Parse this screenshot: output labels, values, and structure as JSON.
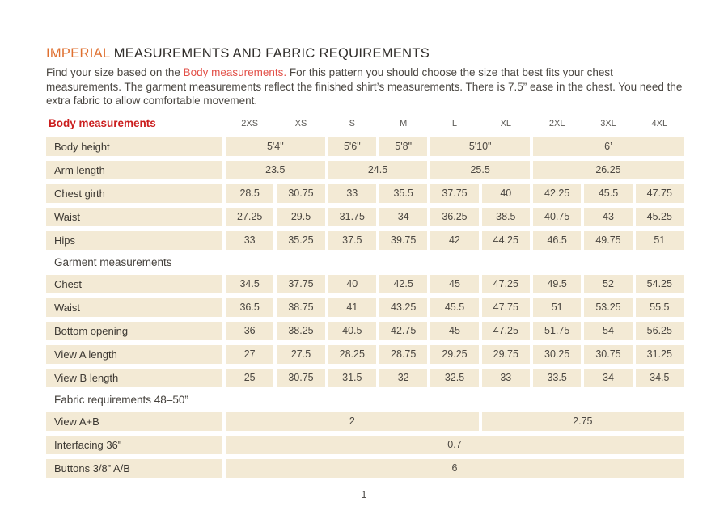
{
  "page": {
    "title_accent": "IMPERIAL",
    "title_rest": " MEASUREMENTS AND FABRIC REQUIREMENTS",
    "intro_pre": "Find your size based on the ",
    "intro_link": "Body measurements.",
    "intro_post": " For this pattern you should choose the size that best fits your chest measurements. The garment measurements reflect the finished shirt’s measurements. There is 7.5” ease in the chest. You need the extra fabric to allow comfortable movement.",
    "page_number": "1"
  },
  "colors": {
    "accent_orange": "#df7030",
    "header_red": "#cb1e1e",
    "inline_link_red": "#e25048",
    "cell_beige": "#f3ead5",
    "text_dark": "#3c3832"
  },
  "table": {
    "header_label": "Body measurements",
    "sizes": [
      "2XS",
      "XS",
      "S",
      "M",
      "L",
      "XL",
      "2XL",
      "3XL",
      "4XL"
    ],
    "sections": [
      {
        "title": "",
        "rows": [
          {
            "label": "Body height",
            "cells": [
              {
                "v": "5'4\"",
                "s": 2
              },
              {
                "v": "5'6\"",
                "s": 1
              },
              {
                "v": "5'8\"",
                "s": 1
              },
              {
                "v": "5'10\"",
                "s": 2
              },
              {
                "v": "6’",
                "s": 3
              }
            ]
          },
          {
            "label": "Arm length",
            "cells": [
              {
                "v": "23.5",
                "s": 2
              },
              {
                "v": "24.5",
                "s": 2
              },
              {
                "v": "25.5",
                "s": 2
              },
              {
                "v": "26.25",
                "s": 3
              }
            ]
          },
          {
            "label": "Chest girth",
            "cells": [
              {
                "v": "28.5",
                "s": 1
              },
              {
                "v": "30.75",
                "s": 1
              },
              {
                "v": "33",
                "s": 1
              },
              {
                "v": "35.5",
                "s": 1
              },
              {
                "v": "37.75",
                "s": 1
              },
              {
                "v": "40",
                "s": 1
              },
              {
                "v": "42.25",
                "s": 1
              },
              {
                "v": "45.5",
                "s": 1
              },
              {
                "v": "47.75",
                "s": 1
              }
            ]
          },
          {
            "label": "Waist",
            "cells": [
              {
                "v": "27.25",
                "s": 1
              },
              {
                "v": "29.5",
                "s": 1
              },
              {
                "v": "31.75",
                "s": 1
              },
              {
                "v": "34",
                "s": 1
              },
              {
                "v": "36.25",
                "s": 1
              },
              {
                "v": "38.5",
                "s": 1
              },
              {
                "v": "40.75",
                "s": 1
              },
              {
                "v": "43",
                "s": 1
              },
              {
                "v": "45.25",
                "s": 1
              }
            ]
          },
          {
            "label": "Hips",
            "cells": [
              {
                "v": "33",
                "s": 1
              },
              {
                "v": "35.25",
                "s": 1
              },
              {
                "v": "37.5",
                "s": 1
              },
              {
                "v": "39.75",
                "s": 1
              },
              {
                "v": "42",
                "s": 1
              },
              {
                "v": "44.25",
                "s": 1
              },
              {
                "v": "46.5",
                "s": 1
              },
              {
                "v": "49.75",
                "s": 1
              },
              {
                "v": "51",
                "s": 1
              }
            ]
          }
        ]
      },
      {
        "title": "Garment measurements",
        "rows": [
          {
            "label": "Chest",
            "cells": [
              {
                "v": "34.5",
                "s": 1
              },
              {
                "v": "37.75",
                "s": 1
              },
              {
                "v": "40",
                "s": 1
              },
              {
                "v": "42.5",
                "s": 1
              },
              {
                "v": "45",
                "s": 1
              },
              {
                "v": "47.25",
                "s": 1
              },
              {
                "v": "49.5",
                "s": 1
              },
              {
                "v": "52",
                "s": 1
              },
              {
                "v": "54.25",
                "s": 1
              }
            ]
          },
          {
            "label": "Waist",
            "cells": [
              {
                "v": "36.5",
                "s": 1
              },
              {
                "v": "38.75",
                "s": 1
              },
              {
                "v": "41",
                "s": 1
              },
              {
                "v": "43.25",
                "s": 1
              },
              {
                "v": "45.5",
                "s": 1
              },
              {
                "v": "47.75",
                "s": 1
              },
              {
                "v": "51",
                "s": 1
              },
              {
                "v": "53.25",
                "s": 1
              },
              {
                "v": "55.5",
                "s": 1
              }
            ]
          },
          {
            "label": "Bottom opening",
            "cells": [
              {
                "v": "36",
                "s": 1
              },
              {
                "v": "38.25",
                "s": 1
              },
              {
                "v": "40.5",
                "s": 1
              },
              {
                "v": "42.75",
                "s": 1
              },
              {
                "v": "45",
                "s": 1
              },
              {
                "v": "47.25",
                "s": 1
              },
              {
                "v": "51.75",
                "s": 1
              },
              {
                "v": "54",
                "s": 1
              },
              {
                "v": "56.25",
                "s": 1
              }
            ]
          },
          {
            "label": "View A length",
            "cells": [
              {
                "v": "27",
                "s": 1
              },
              {
                "v": "27.5",
                "s": 1
              },
              {
                "v": "28.25",
                "s": 1
              },
              {
                "v": "28.75",
                "s": 1
              },
              {
                "v": "29.25",
                "s": 1
              },
              {
                "v": "29.75",
                "s": 1
              },
              {
                "v": "30.25",
                "s": 1
              },
              {
                "v": "30.75",
                "s": 1
              },
              {
                "v": "31.25",
                "s": 1
              }
            ]
          },
          {
            "label": "View B length",
            "cells": [
              {
                "v": "25",
                "s": 1
              },
              {
                "v": "30.75",
                "s": 1
              },
              {
                "v": "31.5",
                "s": 1
              },
              {
                "v": "32",
                "s": 1
              },
              {
                "v": "32.5",
                "s": 1
              },
              {
                "v": "33",
                "s": 1
              },
              {
                "v": "33.5",
                "s": 1
              },
              {
                "v": "34",
                "s": 1
              },
              {
                "v": "34.5",
                "s": 1
              }
            ]
          }
        ]
      },
      {
        "title": "Fabric requirements 48–50”",
        "rows": [
          {
            "label": "View A+B",
            "cells": [
              {
                "v": "2",
                "s": 5
              },
              {
                "v": "2.75",
                "s": 4
              }
            ]
          },
          {
            "label": "Interfacing 36\"",
            "cells": [
              {
                "v": "0.7",
                "s": 9
              }
            ]
          },
          {
            "label": "Buttons 3/8” A/B",
            "cells": [
              {
                "v": "6",
                "s": 9
              }
            ]
          }
        ]
      }
    ]
  }
}
